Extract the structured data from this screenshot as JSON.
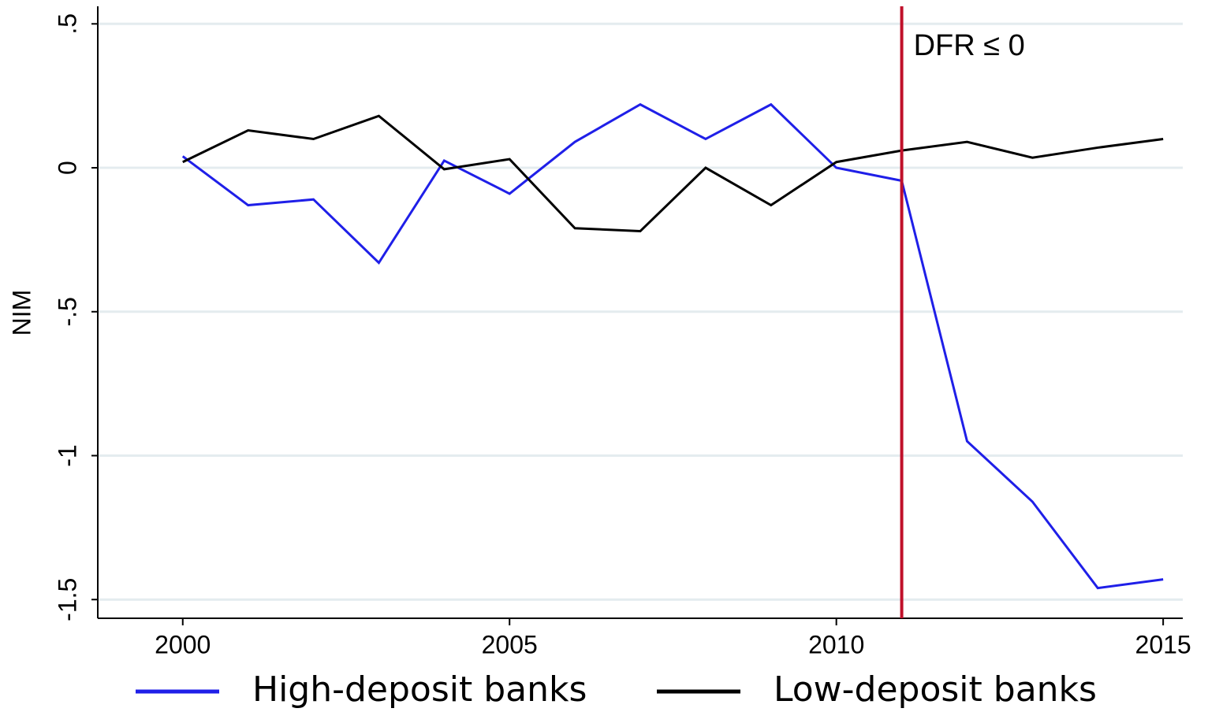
{
  "chart_data": {
    "type": "line",
    "y_label": "NIM",
    "x": [
      2000,
      2001,
      2002,
      2003,
      2004,
      2005,
      2006,
      2007,
      2008,
      2009,
      2010,
      2011,
      2012,
      2013,
      2014,
      2015
    ],
    "series": [
      {
        "name": "High-deposit banks",
        "color": "#1f1fe8",
        "values": [
          0.04,
          -0.13,
          -0.11,
          -0.33,
          0.025,
          -0.09,
          0.09,
          0.22,
          0.1,
          0.22,
          0,
          -0.045,
          -0.95,
          -1.16,
          -1.46,
          -1.43
        ]
      },
      {
        "name": "Low-deposit banks",
        "color": "#000000",
        "values": [
          0.02,
          0.13,
          0.1,
          0.18,
          -0.005,
          0.03,
          -0.21,
          -0.22,
          0,
          -0.13,
          0.02,
          0.06,
          0.09,
          0.035,
          0.07,
          0.1
        ]
      }
    ],
    "vline": {
      "x": 2011,
      "color": "#c0102a"
    },
    "annotation": "DFR ≤ 0",
    "xlim": [
      1998.7,
      2015.3
    ],
    "ylim": [
      -1.565,
      0.561
    ],
    "xticks": [
      2000,
      2005,
      2010,
      2015
    ],
    "yticks": [
      {
        "value": 0.5,
        "label": ".5"
      },
      0,
      {
        "value": -0.5,
        "label": "-.5"
      },
      -1,
      -1.5
    ],
    "grid": true,
    "legend": "bottom"
  }
}
